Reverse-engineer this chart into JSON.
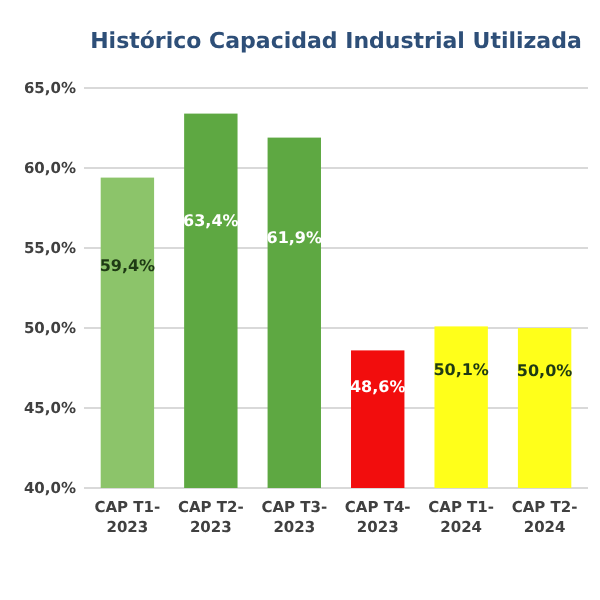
{
  "chart_data": {
    "type": "bar",
    "title": "Histórico Capacidad Industrial Utilizada",
    "categories": [
      "CAP T1-2023",
      "CAP T2-2023",
      "CAP T3-2023",
      "CAP T4-2023",
      "CAP T1-2024",
      "CAP T2-2024"
    ],
    "values": [
      59.4,
      63.4,
      61.9,
      48.6,
      50.1,
      50.0
    ],
    "colors": [
      "#8cc46a",
      "#5ea842",
      "#5ea842",
      "#f20d0d",
      "#ffff1a",
      "#ffff1a"
    ],
    "value_labels": [
      "59,4%",
      "63,4%",
      "61,9%",
      "48,6%",
      "50,1%",
      "50,0%"
    ],
    "ylim": [
      40,
      65
    ],
    "yticks": [
      {
        "value": 40,
        "label": "40,0%"
      },
      {
        "value": 45,
        "label": "45,0%"
      },
      {
        "value": 50,
        "label": "50,0%"
      },
      {
        "value": 55,
        "label": "55,0%"
      },
      {
        "value": 60,
        "label": "60,0%"
      },
      {
        "value": 65,
        "label": "65,0%"
      }
    ],
    "grid": "y"
  }
}
